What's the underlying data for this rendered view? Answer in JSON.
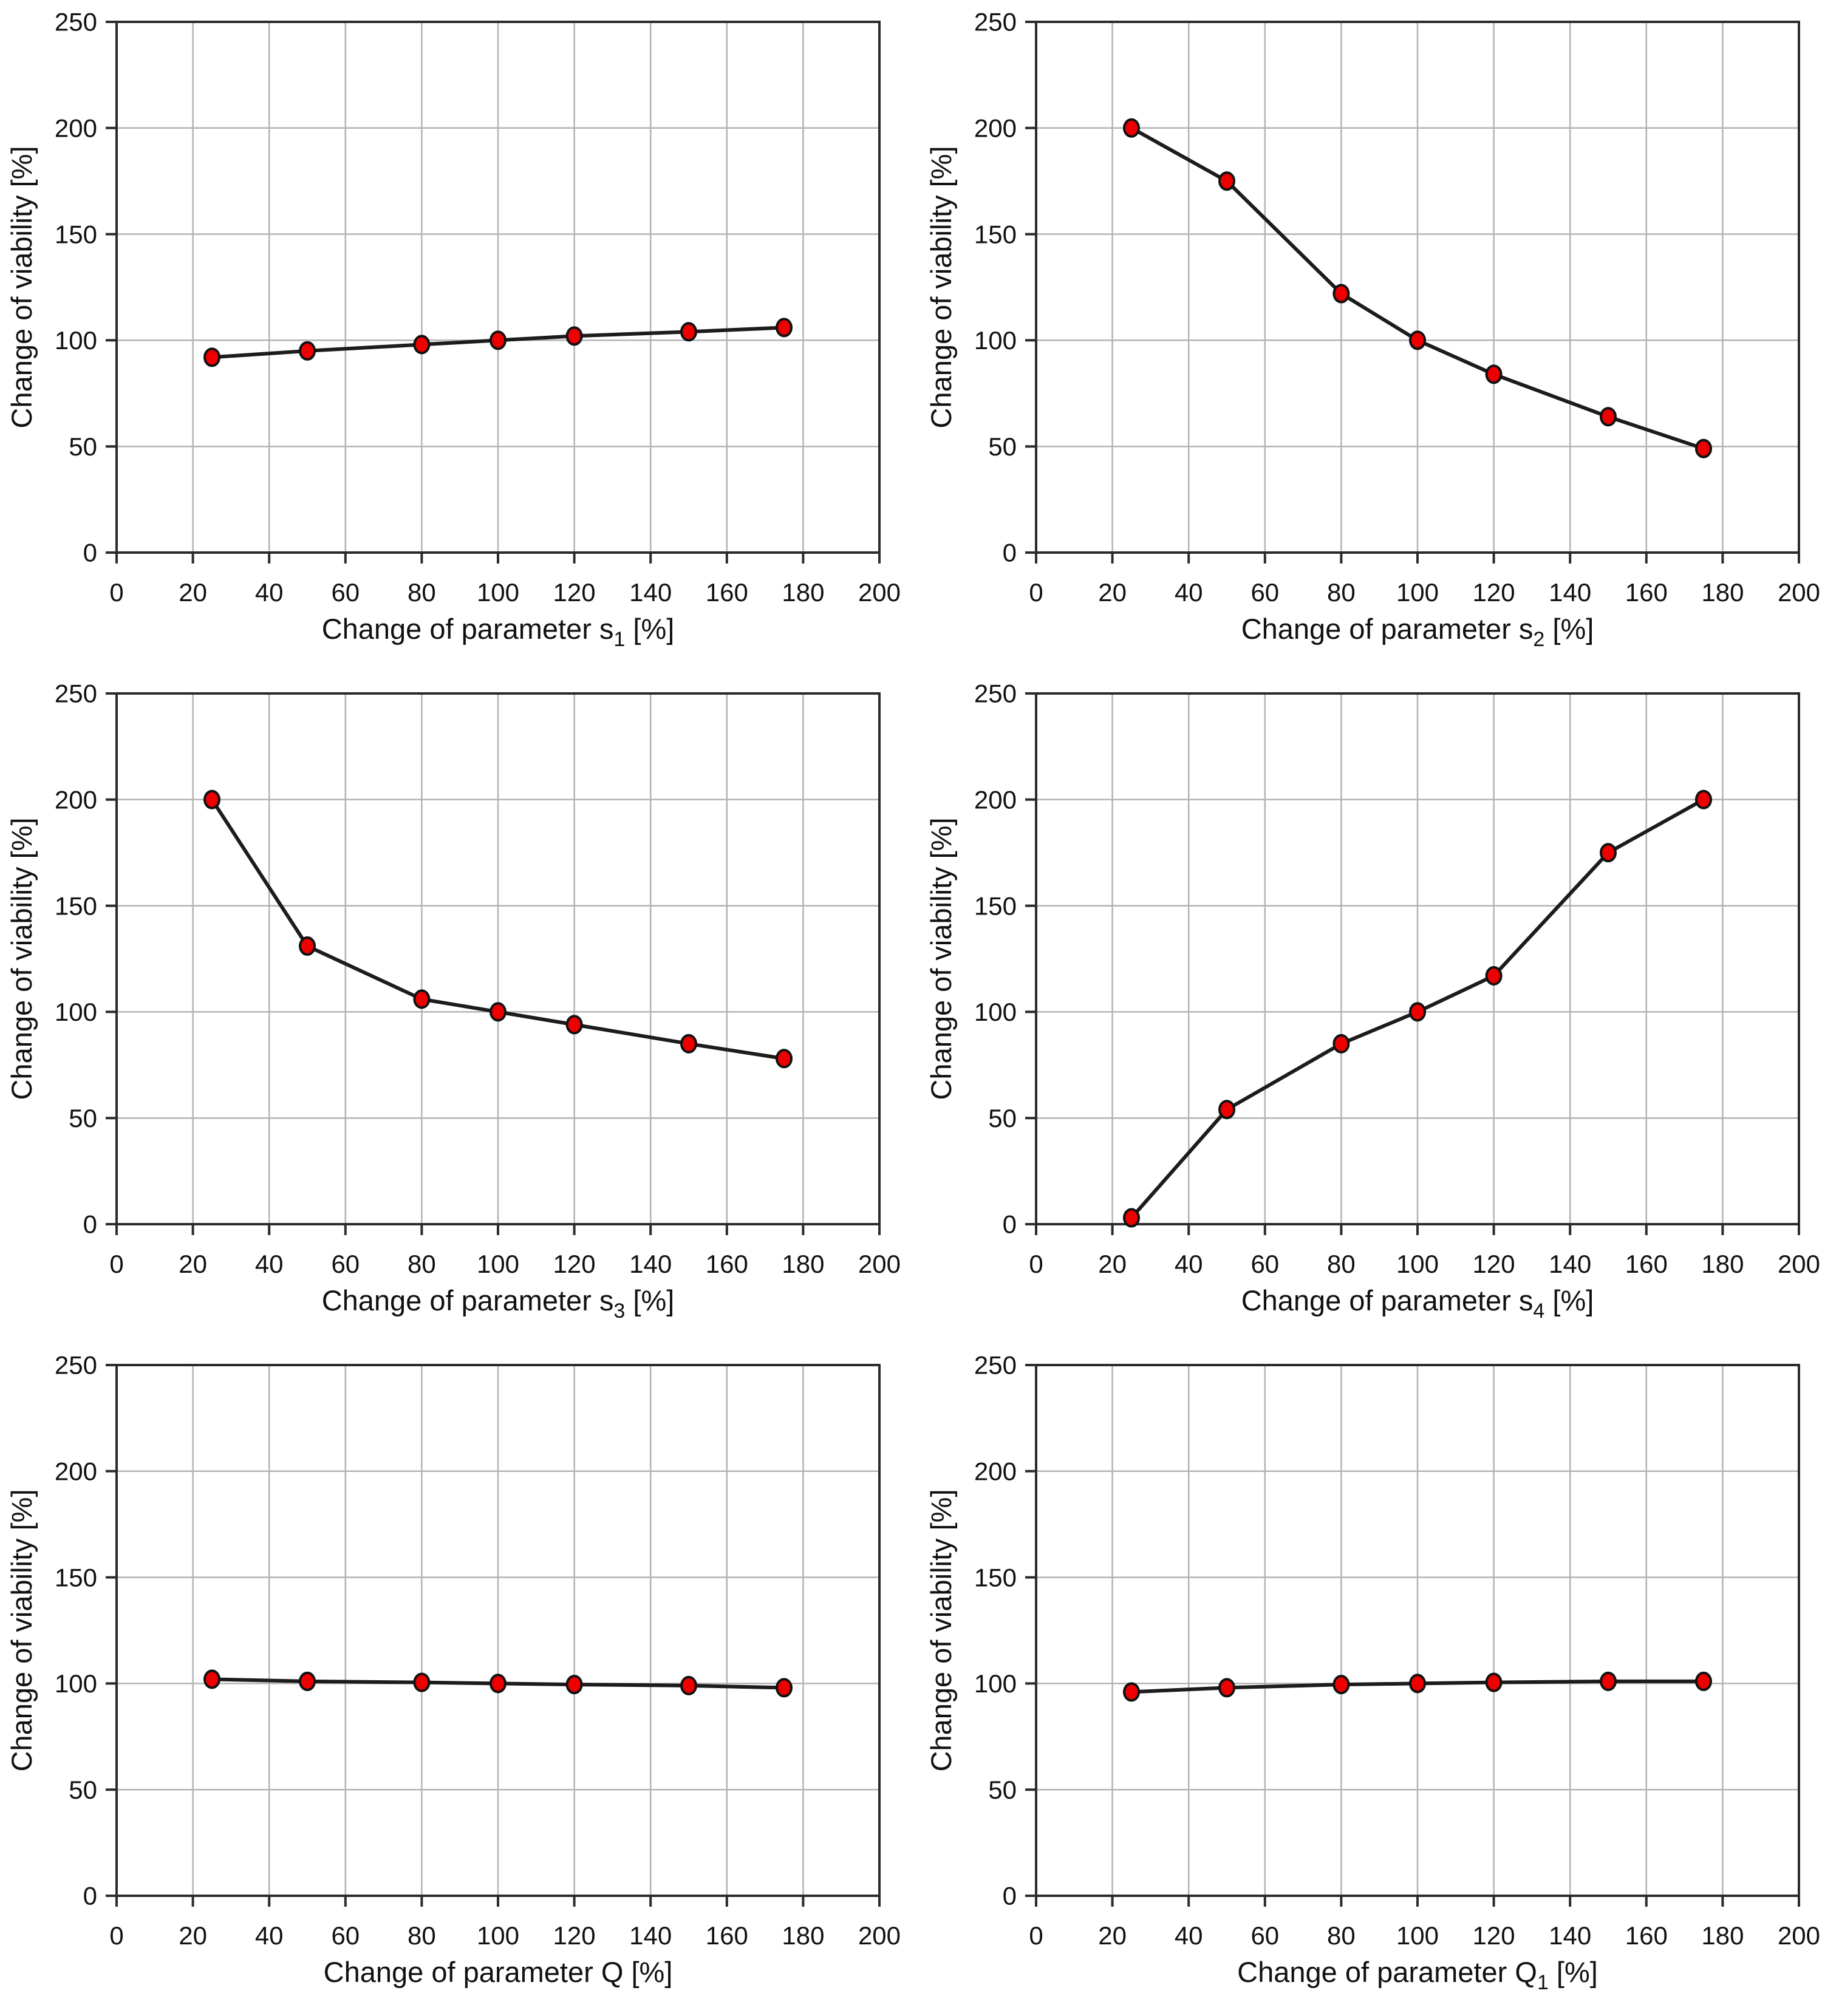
{
  "page": {
    "background": "#ffffff"
  },
  "style": {
    "marker_fill": "#ee0000",
    "marker_stroke": "#111111",
    "line_color": "#1c1c1c",
    "grid_color": "#b3b3b3",
    "frame_color": "#2b2b2b",
    "text_color": "#111111"
  },
  "chart_data": [
    {
      "type": "line",
      "title": "",
      "xlabel": "Change of parameter s1 [%]",
      "xlabel_main": "Change of parameter s",
      "xlabel_sub": "1",
      "xlabel_unit": "[%]",
      "ylabel": "Change of viability [%]",
      "xlim": [
        0,
        200
      ],
      "ylim": [
        0,
        250
      ],
      "xticks": [
        0,
        20,
        40,
        60,
        80,
        100,
        120,
        140,
        160,
        180,
        200
      ],
      "yticks": [
        0,
        50,
        100,
        150,
        200,
        250
      ],
      "grid": true,
      "legend": "none",
      "x": [
        25,
        50,
        80,
        100,
        120,
        150,
        175
      ],
      "y": [
        92,
        95,
        98,
        100,
        102,
        104,
        106
      ]
    },
    {
      "type": "line",
      "title": "",
      "xlabel": "Change of parameter s2 [%]",
      "xlabel_main": "Change of parameter s",
      "xlabel_sub": "2",
      "xlabel_unit": "[%]",
      "ylabel": "Change of viability [%]",
      "xlim": [
        0,
        200
      ],
      "ylim": [
        0,
        250
      ],
      "xticks": [
        0,
        20,
        40,
        60,
        80,
        100,
        120,
        140,
        160,
        180,
        200
      ],
      "yticks": [
        0,
        50,
        100,
        150,
        200,
        250
      ],
      "grid": true,
      "legend": "none",
      "x": [
        25,
        50,
        80,
        100,
        120,
        150,
        175
      ],
      "y": [
        200,
        175,
        122,
        100,
        84,
        64,
        49
      ]
    },
    {
      "type": "line",
      "title": "",
      "xlabel": "Change of parameter s3 [%]",
      "xlabel_main": "Change of parameter s",
      "xlabel_sub": "3",
      "xlabel_unit": "[%]",
      "ylabel": "Change of viability [%]",
      "xlim": [
        0,
        200
      ],
      "ylim": [
        0,
        250
      ],
      "xticks": [
        0,
        20,
        40,
        60,
        80,
        100,
        120,
        140,
        160,
        180,
        200
      ],
      "yticks": [
        0,
        50,
        100,
        150,
        200,
        250
      ],
      "grid": true,
      "legend": "none",
      "x": [
        25,
        50,
        80,
        100,
        120,
        150,
        175
      ],
      "y": [
        200,
        131,
        106,
        100,
        94,
        85,
        78
      ]
    },
    {
      "type": "line",
      "title": "",
      "xlabel": "Change of parameter s4 [%]",
      "xlabel_main": "Change of parameter s",
      "xlabel_sub": "4",
      "xlabel_unit": "[%]",
      "ylabel": "Change of viability [%]",
      "xlim": [
        0,
        200
      ],
      "ylim": [
        0,
        250
      ],
      "xticks": [
        0,
        20,
        40,
        60,
        80,
        100,
        120,
        140,
        160,
        180,
        200
      ],
      "yticks": [
        0,
        50,
        100,
        150,
        200,
        250
      ],
      "grid": true,
      "legend": "none",
      "x": [
        25,
        50,
        80,
        100,
        120,
        150,
        175
      ],
      "y": [
        3,
        54,
        85,
        100,
        117,
        175,
        200
      ]
    },
    {
      "type": "line",
      "title": "",
      "xlabel": "Change of parameter Q [%]",
      "xlabel_main": "Change of parameter Q",
      "xlabel_sub": "",
      "xlabel_unit": "[%]",
      "ylabel": "Change of viability [%]",
      "xlim": [
        0,
        200
      ],
      "ylim": [
        0,
        250
      ],
      "xticks": [
        0,
        20,
        40,
        60,
        80,
        100,
        120,
        140,
        160,
        180,
        200
      ],
      "yticks": [
        0,
        50,
        100,
        150,
        200,
        250
      ],
      "grid": true,
      "legend": "none",
      "x": [
        25,
        50,
        80,
        100,
        120,
        150,
        175
      ],
      "y": [
        102,
        101,
        100.5,
        100,
        99.5,
        99,
        98
      ]
    },
    {
      "type": "line",
      "title": "",
      "xlabel": "Change of parameter Q1 [%]",
      "xlabel_main": "Change of parameter Q",
      "xlabel_sub": "1",
      "xlabel_unit": "[%]",
      "ylabel": "Change of viability [%]",
      "xlim": [
        0,
        200
      ],
      "ylim": [
        0,
        250
      ],
      "xticks": [
        0,
        20,
        40,
        60,
        80,
        100,
        120,
        140,
        160,
        180,
        200
      ],
      "yticks": [
        0,
        50,
        100,
        150,
        200,
        250
      ],
      "grid": true,
      "legend": "none",
      "x": [
        25,
        50,
        80,
        100,
        120,
        150,
        175
      ],
      "y": [
        96,
        98,
        99.5,
        100,
        100.5,
        101,
        101
      ]
    }
  ]
}
